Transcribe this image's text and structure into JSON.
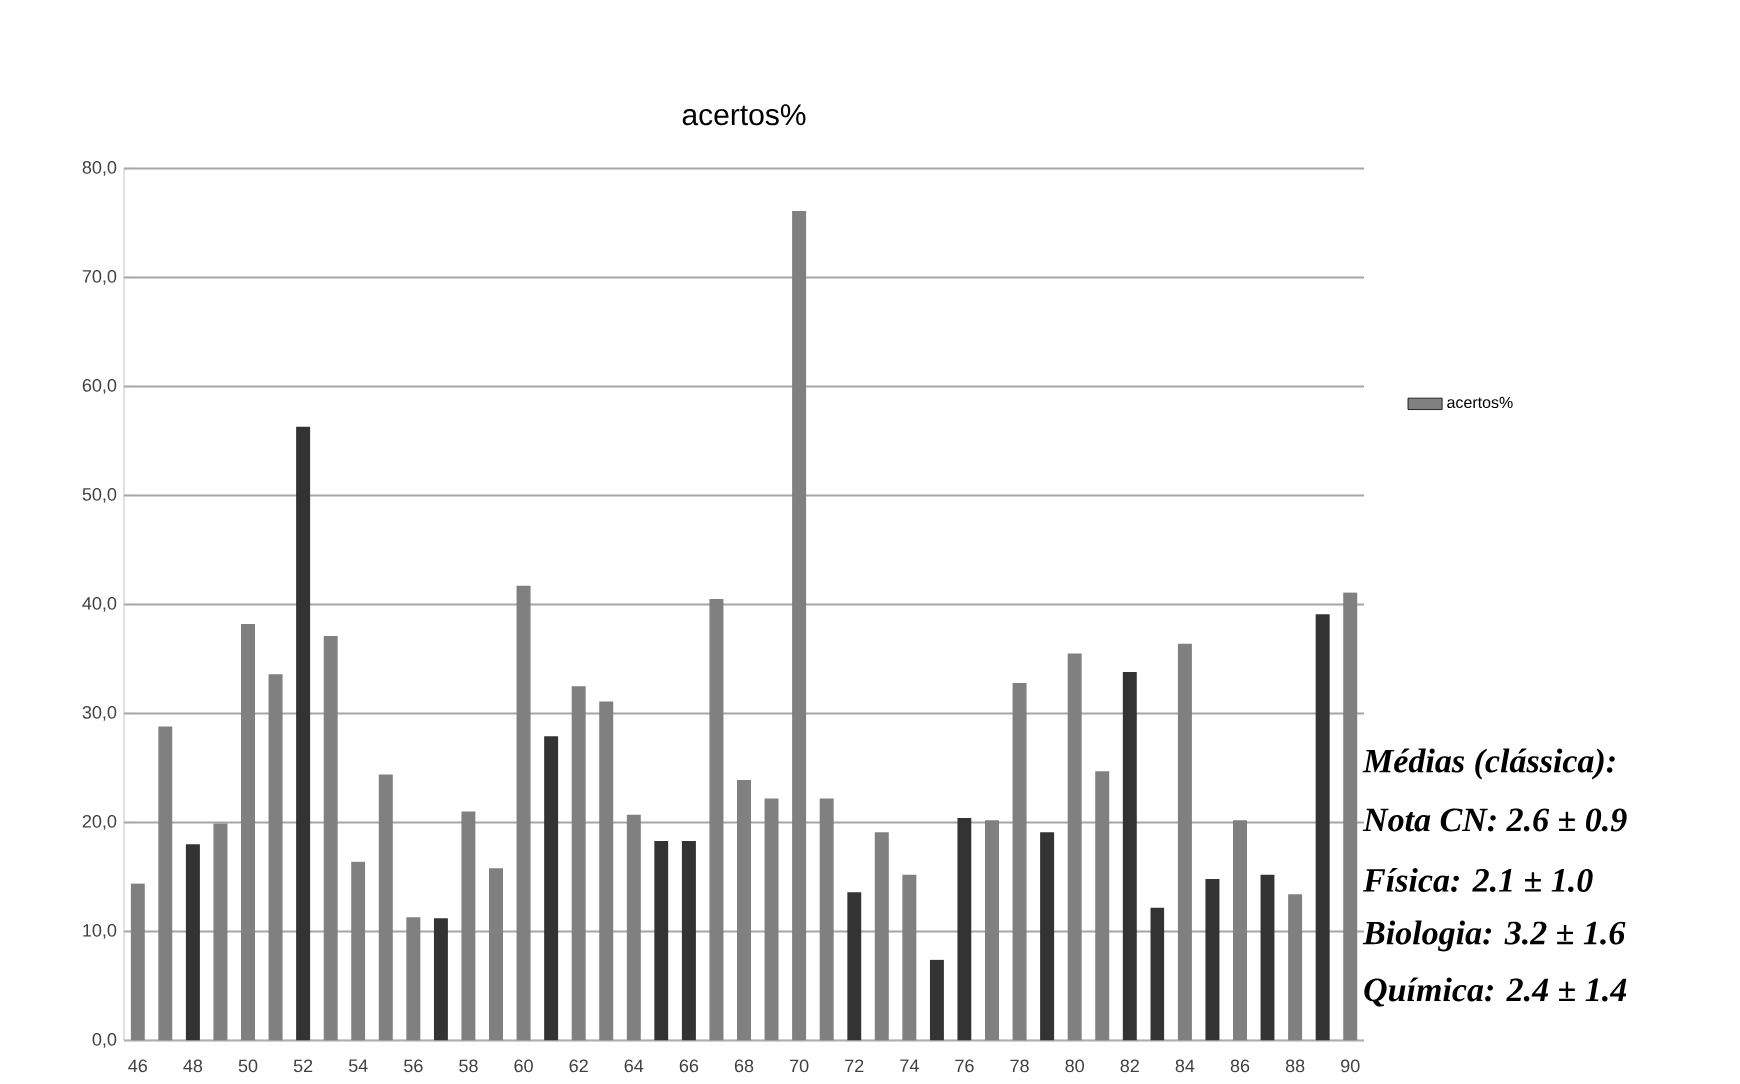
{
  "chart_data": {
    "type": "bar",
    "title": "acertos%",
    "categories": [
      "46",
      null,
      "48",
      null,
      "50",
      null,
      "52",
      null,
      "54",
      null,
      "56",
      null,
      "58",
      null,
      "60",
      null,
      "62",
      null,
      "64",
      null,
      "66",
      null,
      "68",
      null,
      "70",
      null,
      "72",
      null,
      "74",
      null,
      "76",
      null,
      "78",
      null,
      "80",
      null,
      "82",
      null,
      "84",
      null,
      "86",
      null,
      "88",
      null,
      "90"
    ],
    "series": [
      {
        "name": "acertos%",
        "color": "#808080",
        "values": [
          14.4,
          28.8,
          18.0,
          19.9,
          38.2,
          33.6,
          56.3,
          37.1,
          16.4,
          24.4,
          11.3,
          11.2,
          21.0,
          15.8,
          41.7,
          27.9,
          32.5,
          31.1,
          20.7,
          18.3,
          18.3,
          40.5,
          23.9,
          22.2,
          76.1,
          22.2,
          13.6,
          19.1,
          15.2,
          7.4,
          20.4,
          20.2,
          32.8,
          19.1,
          35.5,
          24.7,
          33.8,
          12.2,
          36.4,
          14.8,
          20.2,
          15.2,
          13.4,
          39.1,
          41.1
        ],
        "colors": [
          "#808080",
          "#808080",
          "#333333",
          "#808080",
          "#808080",
          "#808080",
          "#333333",
          "#808080",
          "#808080",
          "#808080",
          "#808080",
          "#333333",
          "#808080",
          "#808080",
          "#808080",
          "#333333",
          "#808080",
          "#808080",
          "#808080",
          "#333333",
          "#333333",
          "#808080",
          "#808080",
          "#808080",
          "#808080",
          "#808080",
          "#333333",
          "#808080",
          "#808080",
          "#333333",
          "#333333",
          "#808080",
          "#808080",
          "#333333",
          "#808080",
          "#808080",
          "#333333",
          "#333333",
          "#808080",
          "#333333",
          "#808080",
          "#333333",
          "#808080",
          "#333333",
          "#808080"
        ]
      }
    ],
    "ylim": [
      0,
      80
    ],
    "yticks": [
      {
        "value": 0,
        "label": "0,0"
      },
      {
        "value": 10,
        "label": "10,0"
      },
      {
        "value": 20,
        "label": "20,0"
      },
      {
        "value": 30,
        "label": "30,0"
      },
      {
        "value": 40,
        "label": "40,0"
      },
      {
        "value": 50,
        "label": "50,0"
      },
      {
        "value": 60,
        "label": "60,0"
      },
      {
        "value": 70,
        "label": "70,0"
      },
      {
        "value": 80,
        "label": "80,0"
      }
    ],
    "grid": "y",
    "legend": "right",
    "annotations": [
      "Médias (clássica):",
      "Nota CN: 2.6 ± 0.9",
      "Física: 2.1 ± 1.0",
      "Biologia: 3.2 ± 1.6",
      "Química: 2.4 ± 1.4"
    ]
  }
}
